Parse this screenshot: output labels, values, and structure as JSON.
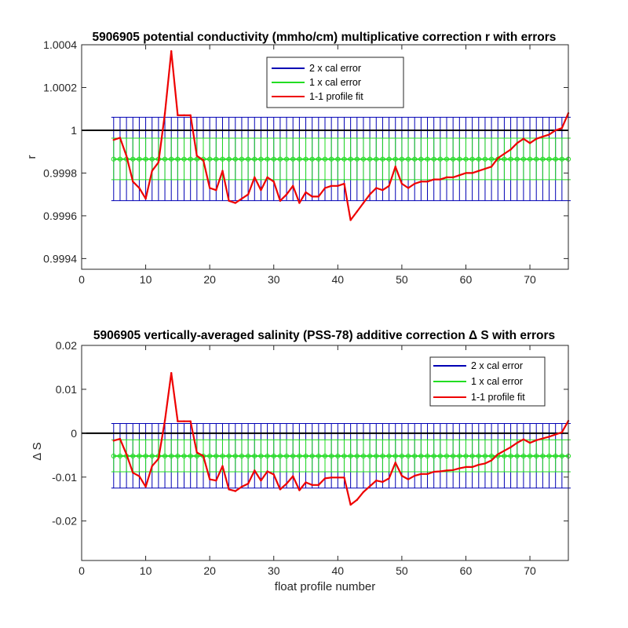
{
  "figure": {
    "background": "#ffffff"
  },
  "chart_data": [
    {
      "type": "line",
      "title": "5906905 potential conductivity (mmho/cm) multiplicative correction r with errors",
      "xlabel": "",
      "ylabel": "r",
      "xlim": [
        0,
        76
      ],
      "ylim": [
        0.99935,
        1.0004
      ],
      "xticks": [
        0,
        10,
        20,
        30,
        40,
        50,
        60,
        70
      ],
      "yticks": [
        0.9994,
        0.9996,
        0.9998,
        1,
        1.0002,
        1.0004
      ],
      "ytick_labels": [
        "0.9994",
        "0.9996",
        "0.9998",
        "1",
        "1.0002",
        "1.0004"
      ],
      "reference_line": 1,
      "legend": {
        "position": "top-center",
        "entries": [
          "2 x cal error",
          "1 x cal error",
          "1-1 profile fit"
        ]
      },
      "colors": {
        "two_cal": "#0000b4",
        "one_cal": "#22dd22",
        "fit": "#ee0000",
        "reference": "#000000"
      },
      "error_bands": {
        "x_start": 5,
        "x_end": 76,
        "center": 0.999865,
        "two_cal": [
          0.999671,
          1.000061
        ],
        "one_cal": [
          0.999769,
          0.999963
        ]
      },
      "series": [
        {
          "name": "1-1 profile fit",
          "x": [
            5,
            6,
            7,
            8,
            9,
            10,
            11,
            12,
            13,
            14,
            15,
            16,
            17,
            18,
            19,
            20,
            21,
            22,
            23,
            24,
            25,
            26,
            27,
            28,
            29,
            30,
            31,
            32,
            33,
            34,
            35,
            36,
            37,
            38,
            39,
            40,
            41,
            42,
            43,
            44,
            45,
            46,
            47,
            48,
            49,
            50,
            51,
            52,
            53,
            54,
            55,
            56,
            57,
            58,
            59,
            60,
            61,
            62,
            63,
            64,
            65,
            66,
            67,
            68,
            69,
            70,
            71,
            72,
            73,
            74,
            75,
            76
          ],
          "y": [
            0.999955,
            0.999965,
            0.99988,
            0.99976,
            0.99973,
            0.99968,
            0.99981,
            0.99985,
            1.00008,
            1.00037,
            1.00007,
            1.00007,
            1.00007,
            0.99988,
            0.99986,
            0.99973,
            0.99972,
            0.99981,
            0.99967,
            0.99966,
            0.99968,
            0.9997,
            0.99978,
            0.99972,
            0.99978,
            0.99976,
            0.99967,
            0.9997,
            0.99974,
            0.99966,
            0.99971,
            0.99969,
            0.99969,
            0.99973,
            0.99974,
            0.99974,
            0.99975,
            0.99958,
            0.99962,
            0.99966,
            0.9997,
            0.99973,
            0.99972,
            0.99974,
            0.99983,
            0.99975,
            0.99973,
            0.99975,
            0.99976,
            0.99976,
            0.99977,
            0.99977,
            0.99978,
            0.99978,
            0.99979,
            0.9998,
            0.9998,
            0.99981,
            0.99982,
            0.99983,
            0.99987,
            0.99989,
            0.99991,
            0.99994,
            0.99996,
            0.99994,
            0.99996,
            0.99997,
            0.99998,
            1.0,
            1.00001,
            1.00008
          ]
        }
      ]
    },
    {
      "type": "line",
      "title": "5906905 vertically-averaged salinity (PSS-78) additive correction Δ S with errors",
      "xlabel": "float profile number",
      "ylabel": "Δ S",
      "xlim": [
        0,
        76
      ],
      "ylim": [
        -0.029,
        0.02
      ],
      "xticks": [
        0,
        10,
        20,
        30,
        40,
        50,
        60,
        70
      ],
      "yticks": [
        -0.02,
        -0.01,
        0,
        0.01,
        0.02
      ],
      "ytick_labels": [
        "-0.02",
        "-0.01",
        "0",
        "0.01",
        "0.02"
      ],
      "reference_line": 0,
      "legend": {
        "position": "top-right",
        "entries": [
          "2 x cal error",
          "1 x cal error",
          "1-1 profile fit"
        ]
      },
      "colors": {
        "two_cal": "#0000b4",
        "one_cal": "#22dd22",
        "fit": "#ee0000",
        "reference": "#000000"
      },
      "error_bands": {
        "x_start": 5,
        "x_end": 76,
        "center": -0.0052,
        "two_cal": [
          -0.0125,
          0.0022
        ],
        "one_cal": [
          -0.0088,
          -0.0015
        ]
      },
      "series": [
        {
          "name": "1-1 profile fit",
          "x": [
            5,
            6,
            7,
            8,
            9,
            10,
            11,
            12,
            13,
            14,
            15,
            16,
            17,
            18,
            19,
            20,
            21,
            22,
            23,
            24,
            25,
            26,
            27,
            28,
            29,
            30,
            31,
            32,
            33,
            34,
            35,
            36,
            37,
            38,
            39,
            40,
            41,
            42,
            43,
            44,
            45,
            46,
            47,
            48,
            49,
            50,
            51,
            52,
            53,
            54,
            55,
            56,
            57,
            58,
            59,
            60,
            61,
            62,
            63,
            64,
            65,
            66,
            67,
            68,
            69,
            70,
            71,
            72,
            73,
            74,
            75,
            76
          ],
          "y": [
            -0.0017,
            -0.0013,
            -0.0048,
            -0.009,
            -0.0098,
            -0.0122,
            -0.0075,
            -0.0058,
            0.0029,
            0.0137,
            0.0027,
            0.0027,
            0.0027,
            -0.0044,
            -0.0052,
            -0.0105,
            -0.0108,
            -0.0075,
            -0.0128,
            -0.0132,
            -0.0122,
            -0.0115,
            -0.0085,
            -0.0108,
            -0.0087,
            -0.0094,
            -0.0128,
            -0.0115,
            -0.0098,
            -0.013,
            -0.0112,
            -0.0118,
            -0.0118,
            -0.0103,
            -0.0101,
            -0.0101,
            -0.0101,
            -0.0163,
            -0.0152,
            -0.0134,
            -0.0121,
            -0.0108,
            -0.0111,
            -0.0103,
            -0.0067,
            -0.0097,
            -0.0105,
            -0.0097,
            -0.0093,
            -0.0093,
            -0.0088,
            -0.0087,
            -0.0085,
            -0.0084,
            -0.008,
            -0.0077,
            -0.0077,
            -0.0072,
            -0.0069,
            -0.0062,
            -0.0048,
            -0.004,
            -0.0032,
            -0.0022,
            -0.0014,
            -0.0022,
            -0.0016,
            -0.0012,
            -0.0008,
            -0.0003,
            0.0002,
            0.0028
          ]
        }
      ]
    }
  ]
}
